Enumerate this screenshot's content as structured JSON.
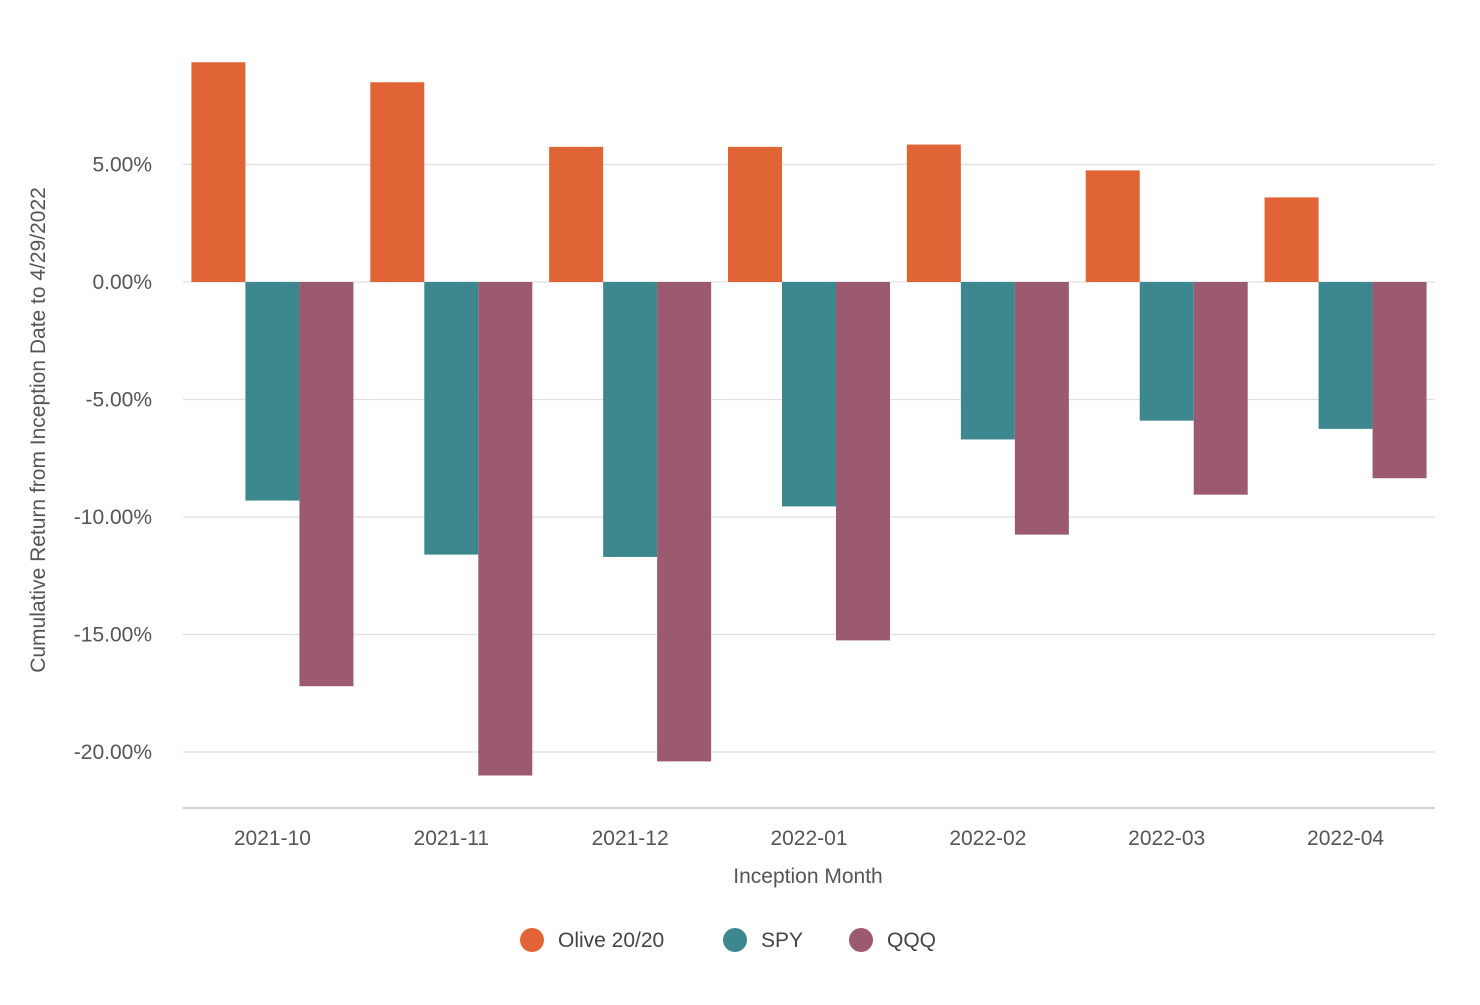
{
  "chart_data": {
    "type": "bar",
    "title": "",
    "xlabel": "Inception Month",
    "ylabel": "Cumulative Return from Inception Date to 4/29/2022",
    "categories": [
      "2021-10",
      "2021-11",
      "2021-12",
      "2022-01",
      "2022-02",
      "2022-03",
      "2022-04"
    ],
    "series": [
      {
        "name": "Olive 20/20",
        "color": "#e06436",
        "values": [
          9.35,
          8.5,
          5.75,
          5.75,
          5.85,
          4.75,
          3.6
        ]
      },
      {
        "name": "SPY",
        "color": "#3d878f",
        "values": [
          -9.3,
          -11.6,
          -11.7,
          -9.55,
          -6.7,
          -5.9,
          -6.25
        ]
      },
      {
        "name": "QQQ",
        "color": "#9c5a71",
        "values": [
          -17.2,
          -21.0,
          -20.4,
          -15.25,
          -10.75,
          -9.05,
          -8.35
        ]
      }
    ],
    "ylim": [
      -22.5,
      10.5
    ],
    "yticks": [
      5,
      0,
      -5,
      -10,
      -15,
      -20
    ],
    "ytick_labels": [
      "5.00%",
      "0.00%",
      "-5.00%",
      "-10.00%",
      "-15.00%",
      "-20.00%"
    ],
    "grid": true,
    "legend_position": "bottom-center"
  }
}
